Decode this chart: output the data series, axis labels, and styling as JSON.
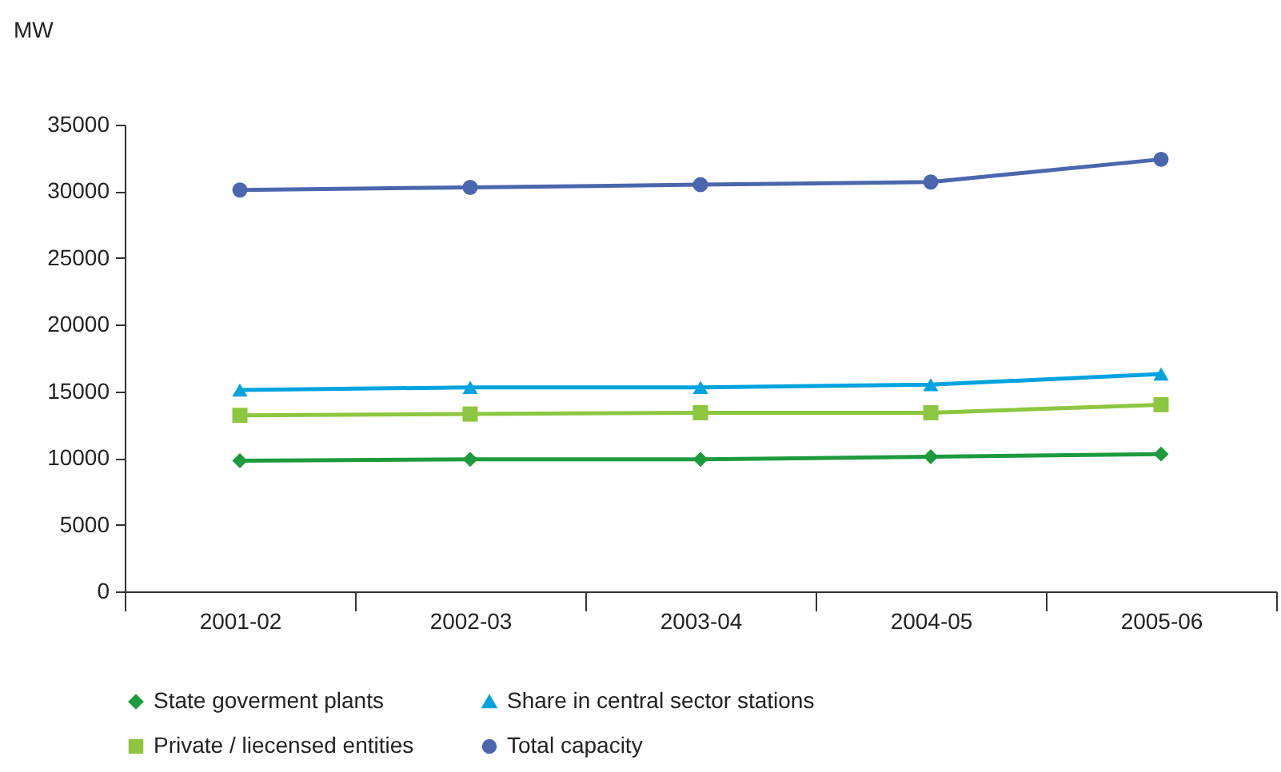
{
  "chart_data": {
    "type": "line",
    "ylabel": "MW",
    "categories": [
      "2001-02",
      "2002-03",
      "2003-04",
      "2004-05",
      "2005-06"
    ],
    "ylim": [
      0,
      35000
    ],
    "yticks": [
      0,
      5000,
      10000,
      15000,
      20000,
      25000,
      30000,
      35000
    ],
    "grid": false,
    "legend": "bottom",
    "series": [
      {
        "name": "State goverment plants",
        "color": "#1e9a3e",
        "marker": "diamond",
        "values": [
          9800,
          9900,
          9900,
          10100,
          10300
        ]
      },
      {
        "name": "Private / liecensed entities",
        "color": "#8dc63f",
        "marker": "square",
        "values": [
          13200,
          13300,
          13400,
          13400,
          14000
        ]
      },
      {
        "name": "Share in central sector stations",
        "color": "#00a3e0",
        "marker": "triangle",
        "values": [
          15100,
          15300,
          15300,
          15500,
          16300
        ]
      },
      {
        "name": "Total capacity",
        "color": "#4a67ad",
        "marker": "circle",
        "values": [
          30100,
          30300,
          30500,
          30700,
          32400
        ]
      }
    ]
  }
}
